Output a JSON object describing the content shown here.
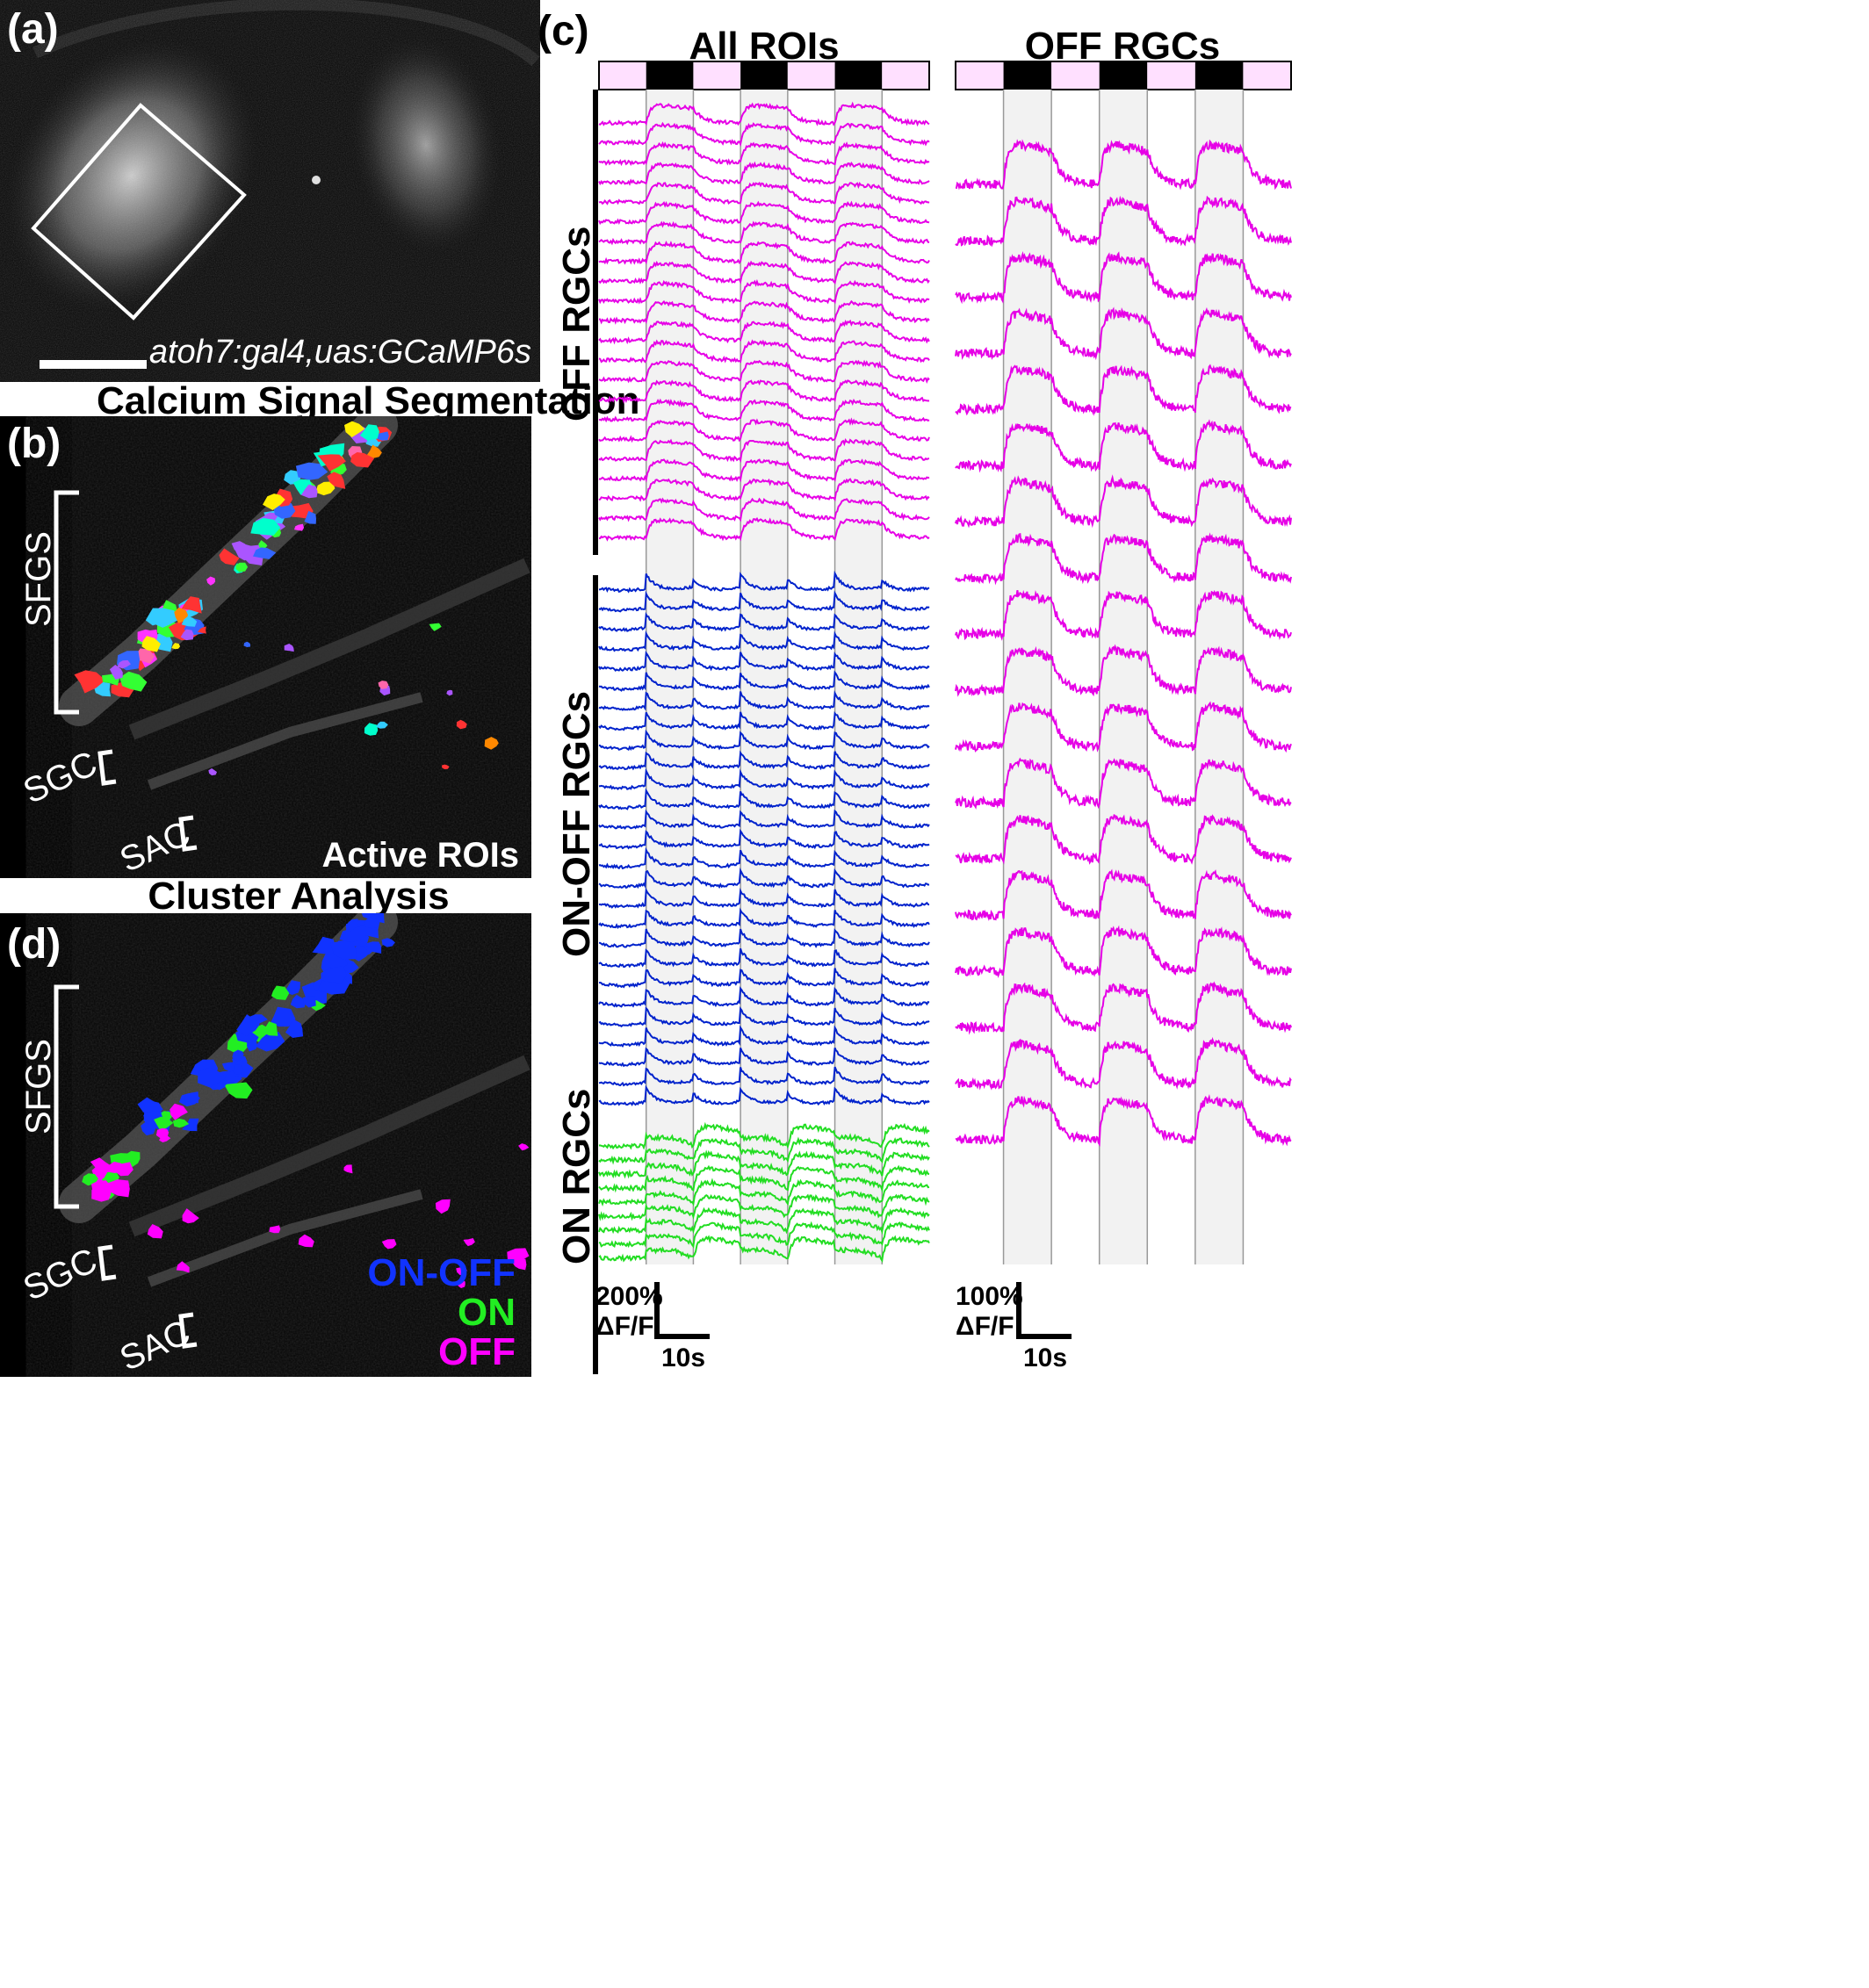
{
  "panel_a": {
    "letter": "(a)",
    "caption": "atoh7:gal4,uas:GCaMP6s"
  },
  "panel_b": {
    "letter": "(b)",
    "heading": "Calcium Signal Segmentation",
    "layers": {
      "sfgs": "SFGS",
      "sgc": "SGC",
      "sac": "SAC"
    },
    "caption": "Active ROIs",
    "roi_colors": [
      "#ff33ff",
      "#ffee00",
      "#33ff33",
      "#ff8800",
      "#33ccff",
      "#ff3333",
      "#aa55ff",
      "#3366ff",
      "#00ffcc",
      "#ff66aa"
    ]
  },
  "panel_d": {
    "letter": "(d)",
    "heading": "Cluster Analysis",
    "layers": {
      "sfgs": "SFGS",
      "sgc": "SGC",
      "sac": "SAC"
    },
    "legend": [
      {
        "label": "ON-OFF",
        "color": "#1133ff"
      },
      {
        "label": "ON",
        "color": "#22ee22"
      },
      {
        "label": "OFF",
        "color": "#ff00ff"
      }
    ]
  },
  "panel_c": {
    "letter": "(c)",
    "left": {
      "title": "All ROIs",
      "groups": [
        {
          "label": "OFF RGCs",
          "color": "#e600e6"
        },
        {
          "label": "ON-OFF RGCs",
          "color": "#0022cc"
        },
        {
          "label": "ON RGCs",
          "color": "#22dd22"
        }
      ],
      "scale": {
        "amplitude": "200%",
        "unit": "ΔF/F",
        "time": "10s"
      }
    },
    "right": {
      "title": "OFF RGCs",
      "color": "#e600e6",
      "scale": {
        "amplitude": "100%",
        "unit": "ΔF/F",
        "time": "10s"
      }
    },
    "stimulus_colors": {
      "light": "#ffe0ff",
      "dark": "#000000",
      "shade": "#f2f2f2"
    }
  }
}
